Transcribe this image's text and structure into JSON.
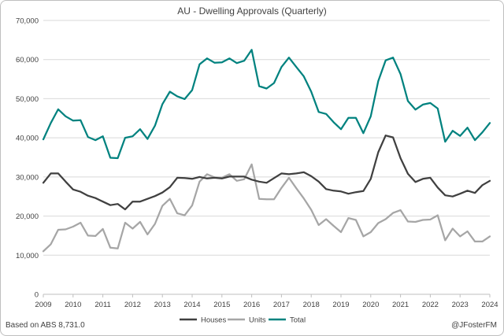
{
  "chart_data": {
    "type": "line",
    "title": "AU - Dwelling Approvals (Quarterly)",
    "xlabel": "",
    "ylabel": "",
    "xlim": [
      2009,
      2024
    ],
    "ylim": [
      0,
      70000
    ],
    "yticks": [
      0,
      10000,
      20000,
      30000,
      40000,
      50000,
      60000,
      70000
    ],
    "ytick_labels": [
      "0",
      "10,000",
      "20,000",
      "30,000",
      "40,000",
      "50,000",
      "60,000",
      "70,000"
    ],
    "xticks": [
      2009,
      2010,
      2011,
      2012,
      2013,
      2014,
      2015,
      2016,
      2017,
      2018,
      2019,
      2020,
      2021,
      2022,
      2023,
      2024
    ],
    "xtick_labels": [
      "2009",
      "2010",
      "2011",
      "2012",
      "2013",
      "2014",
      "2015",
      "2016",
      "2017",
      "2018",
      "2019",
      "2020",
      "2021",
      "2022",
      "2023",
      "2024"
    ],
    "grid": "horizontal",
    "legend_position": "bottom-center",
    "x": [
      2009.0,
      2009.25,
      2009.5,
      2009.75,
      2010.0,
      2010.25,
      2010.5,
      2010.75,
      2011.0,
      2011.25,
      2011.5,
      2011.75,
      2012.0,
      2012.25,
      2012.5,
      2012.75,
      2013.0,
      2013.25,
      2013.5,
      2013.75,
      2014.0,
      2014.25,
      2014.5,
      2014.75,
      2015.0,
      2015.25,
      2015.5,
      2015.75,
      2016.0,
      2016.25,
      2016.5,
      2016.75,
      2017.0,
      2017.25,
      2017.5,
      2017.75,
      2018.0,
      2018.25,
      2018.5,
      2018.75,
      2019.0,
      2019.25,
      2019.5,
      2019.75,
      2020.0,
      2020.25,
      2020.5,
      2020.75,
      2021.0,
      2021.25,
      2021.5,
      2021.75,
      2022.0,
      2022.25,
      2022.5,
      2022.75,
      2023.0,
      2023.25,
      2023.5,
      2023.75,
      2024.0
    ],
    "series": [
      {
        "name": "Houses",
        "color": "#404040",
        "values": [
          28500,
          30900,
          30900,
          28800,
          26800,
          26200,
          25200,
          24600,
          23700,
          22800,
          23100,
          21700,
          23700,
          23700,
          24400,
          25100,
          26000,
          27400,
          29800,
          29700,
          29500,
          30000,
          29600,
          29800,
          29600,
          30100,
          30100,
          30100,
          29300,
          28800,
          28500,
          29700,
          30900,
          30700,
          30900,
          31200,
          30200,
          28800,
          26900,
          26500,
          26300,
          25700,
          26100,
          26400,
          29500,
          36300,
          40600,
          40100,
          34800,
          30800,
          28700,
          29500,
          29800,
          27300,
          25300,
          25000,
          25700,
          26500,
          25900,
          27900,
          29000
        ]
      },
      {
        "name": "Units",
        "color": "#a6a6a6",
        "values": [
          11000,
          12800,
          16500,
          16600,
          17300,
          18300,
          15000,
          14900,
          16700,
          11900,
          11700,
          18300,
          16800,
          18500,
          15300,
          18000,
          22600,
          24400,
          20700,
          20200,
          22700,
          28800,
          30700,
          29900,
          29800,
          30700,
          29000,
          29400,
          33200,
          24400,
          24300,
          24300,
          27200,
          29800,
          27100,
          24500,
          21600,
          17700,
          19200,
          17500,
          15900,
          19500,
          19000,
          14800,
          15900,
          18200,
          19200,
          20800,
          21500,
          18600,
          18500,
          19000,
          19100,
          20200,
          13800,
          16800,
          14800,
          16100,
          13500,
          13500,
          14800
        ]
      },
      {
        "name": "Total",
        "color": "#00827f",
        "values": [
          39600,
          43800,
          47300,
          45500,
          44400,
          44500,
          40200,
          39400,
          40400,
          34900,
          34800,
          40000,
          40400,
          42200,
          39700,
          43100,
          48600,
          51800,
          50600,
          49900,
          52200,
          58800,
          60300,
          59200,
          59300,
          60300,
          59100,
          59700,
          62500,
          53200,
          52600,
          54000,
          58100,
          60500,
          58100,
          55700,
          51800,
          46600,
          46100,
          44000,
          42200,
          45100,
          45100,
          41200,
          45500,
          54500,
          59800,
          60500,
          56300,
          49400,
          47200,
          48500,
          48900,
          47500,
          39000,
          41800,
          40500,
          42600,
          39400,
          41400,
          43800
        ]
      }
    ]
  },
  "footer": {
    "source": "Based on ABS 8,731.0",
    "credit": "@JFosterFM"
  }
}
